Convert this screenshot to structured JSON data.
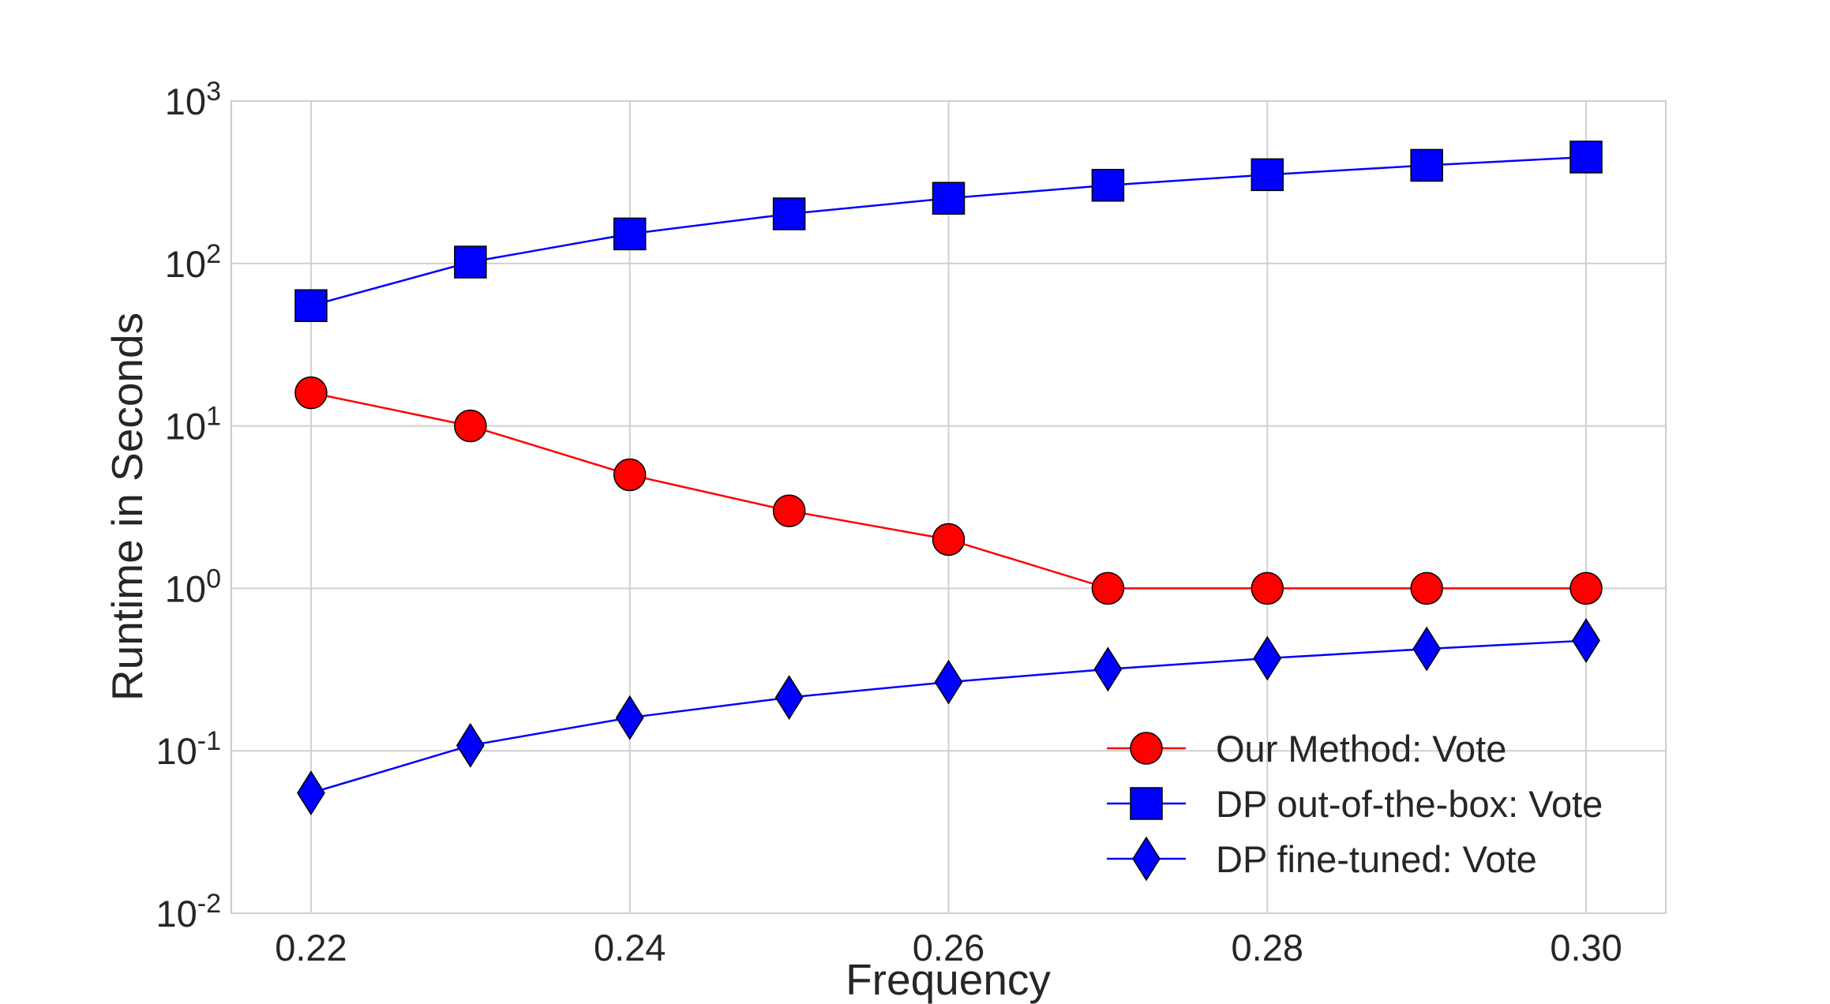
{
  "chart_data": {
    "type": "line",
    "xlabel": "Frequency",
    "ylabel": "Runtime in Seconds",
    "yscale": "log",
    "xlim": [
      0.215,
      0.305
    ],
    "ylim": [
      0.01,
      1000
    ],
    "x": [
      0.22,
      0.23,
      0.24,
      0.25,
      0.26,
      0.27,
      0.28,
      0.29,
      0.3
    ],
    "x_ticks": [
      {
        "value": 0.22,
        "label": "0.22"
      },
      {
        "value": 0.24,
        "label": "0.24"
      },
      {
        "value": 0.26,
        "label": "0.26"
      },
      {
        "value": 0.28,
        "label": "0.28"
      },
      {
        "value": 0.3,
        "label": "0.30"
      }
    ],
    "y_ticks": [
      {
        "value": 1000,
        "base": "10",
        "exp": "3"
      },
      {
        "value": 100,
        "base": "10",
        "exp": "2"
      },
      {
        "value": 10,
        "base": "10",
        "exp": "1"
      },
      {
        "value": 1,
        "base": "10",
        "exp": "0"
      },
      {
        "value": 0.1,
        "base": "10",
        "exp": "-1"
      },
      {
        "value": 0.01,
        "base": "10",
        "exp": "-2"
      }
    ],
    "grid": true,
    "legend_position": "lower-right",
    "series": [
      {
        "name": "Our Method: Vote",
        "color": "#ff0000",
        "marker": "circle",
        "values": [
          16,
          10,
          5,
          3,
          2,
          1,
          1,
          1,
          1
        ]
      },
      {
        "name": "DP out-of-the-box: Vote",
        "color": "#0000ff",
        "marker": "square",
        "values": [
          55,
          102,
          152,
          202,
          252,
          303,
          352,
          402,
          452
        ]
      },
      {
        "name": "DP fine-tuned: Vote",
        "color": "#0000ff",
        "marker": "diamond",
        "values": [
          0.055,
          0.108,
          0.16,
          0.213,
          0.265,
          0.318,
          0.371,
          0.424,
          0.477
        ]
      }
    ]
  }
}
